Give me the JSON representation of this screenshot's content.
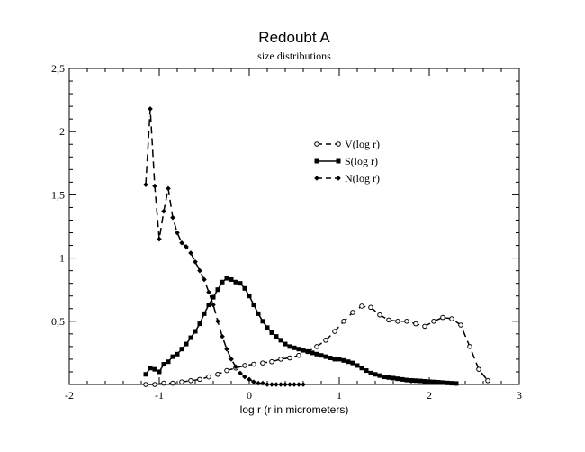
{
  "chart_data": {
    "type": "line",
    "title": "Redoubt A",
    "subtitle": "size distributions",
    "xlabel": "log r (r in micrometers)",
    "ylabel": "",
    "xlim": [
      -2,
      3
    ],
    "ylim": [
      0,
      2.5
    ],
    "x_ticks": [
      {
        "value": -2,
        "label": "-2"
      },
      {
        "value": -1,
        "label": "-1"
      },
      {
        "value": 0,
        "label": "0"
      },
      {
        "value": 1,
        "label": "1"
      },
      {
        "value": 2,
        "label": "2"
      },
      {
        "value": 3,
        "label": "3"
      }
    ],
    "y_ticks": [
      {
        "value": 0.5,
        "label": "0,5"
      },
      {
        "value": 1,
        "label": "1"
      },
      {
        "value": 1.5,
        "label": "1,5"
      },
      {
        "value": 2,
        "label": "2"
      },
      {
        "value": 2.5,
        "label": "2,5"
      }
    ],
    "legend_position": "upper-middle",
    "series": [
      {
        "name": "V(log r)",
        "marker": "open-circle",
        "line": "dashed",
        "x": [
          -1.15,
          -1.05,
          -0.95,
          -0.85,
          -0.75,
          -0.65,
          -0.55,
          -0.45,
          -0.35,
          -0.25,
          -0.15,
          -0.05,
          0.05,
          0.15,
          0.25,
          0.35,
          0.45,
          0.55,
          0.65,
          0.75,
          0.85,
          0.95,
          1.05,
          1.15,
          1.25,
          1.35,
          1.45,
          1.55,
          1.65,
          1.75,
          1.85,
          1.95,
          2.05,
          2.15,
          2.25,
          2.35,
          2.45,
          2.55,
          2.65
        ],
        "y": [
          0.0,
          0.0,
          0.01,
          0.01,
          0.02,
          0.03,
          0.04,
          0.06,
          0.08,
          0.11,
          0.13,
          0.15,
          0.16,
          0.17,
          0.18,
          0.2,
          0.21,
          0.23,
          0.26,
          0.3,
          0.35,
          0.42,
          0.5,
          0.57,
          0.62,
          0.61,
          0.55,
          0.51,
          0.5,
          0.5,
          0.48,
          0.46,
          0.5,
          0.53,
          0.52,
          0.47,
          0.3,
          0.12,
          0.03
        ]
      },
      {
        "name": "S(log r)",
        "marker": "filled-square",
        "line": "solid",
        "x": [
          -1.15,
          -1.1,
          -1.05,
          -1.0,
          -0.95,
          -0.9,
          -0.85,
          -0.8,
          -0.75,
          -0.7,
          -0.65,
          -0.6,
          -0.55,
          -0.5,
          -0.45,
          -0.4,
          -0.35,
          -0.3,
          -0.25,
          -0.2,
          -0.15,
          -0.1,
          -0.05,
          0.0,
          0.05,
          0.1,
          0.15,
          0.2,
          0.25,
          0.3,
          0.35,
          0.4,
          0.45,
          0.5,
          0.55,
          0.6,
          0.65,
          0.7,
          0.75,
          0.8,
          0.85,
          0.9,
          0.95,
          1.0,
          1.05,
          1.1,
          1.15,
          1.2,
          1.25,
          1.3,
          1.35,
          1.4,
          1.45,
          1.5,
          1.55,
          1.6,
          1.65,
          1.7,
          1.75,
          1.8,
          1.85,
          1.9,
          1.95,
          2.0,
          2.05,
          2.1,
          2.15,
          2.2,
          2.25,
          2.3
        ],
        "y": [
          0.08,
          0.13,
          0.12,
          0.1,
          0.16,
          0.18,
          0.22,
          0.24,
          0.28,
          0.32,
          0.37,
          0.42,
          0.48,
          0.56,
          0.63,
          0.69,
          0.75,
          0.81,
          0.84,
          0.83,
          0.81,
          0.8,
          0.76,
          0.7,
          0.63,
          0.56,
          0.5,
          0.45,
          0.41,
          0.38,
          0.35,
          0.32,
          0.3,
          0.29,
          0.28,
          0.27,
          0.26,
          0.25,
          0.24,
          0.23,
          0.22,
          0.21,
          0.2,
          0.2,
          0.19,
          0.18,
          0.17,
          0.15,
          0.13,
          0.11,
          0.09,
          0.08,
          0.07,
          0.06,
          0.055,
          0.05,
          0.045,
          0.04,
          0.035,
          0.032,
          0.03,
          0.028,
          0.025,
          0.022,
          0.02,
          0.018,
          0.015,
          0.012,
          0.01,
          0.008
        ]
      },
      {
        "name": "N(log r)",
        "marker": "filled-diamond",
        "line": "dashed",
        "x": [
          -1.15,
          -1.1,
          -1.05,
          -1.0,
          -0.95,
          -0.9,
          -0.85,
          -0.8,
          -0.75,
          -0.7,
          -0.65,
          -0.6,
          -0.55,
          -0.5,
          -0.45,
          -0.4,
          -0.35,
          -0.3,
          -0.25,
          -0.2,
          -0.15,
          -0.1,
          -0.05,
          0.0,
          0.05,
          0.1,
          0.15,
          0.2,
          0.25,
          0.3,
          0.35,
          0.4,
          0.45,
          0.5,
          0.55,
          0.6
        ],
        "y": [
          1.58,
          2.18,
          1.57,
          1.15,
          1.37,
          1.55,
          1.32,
          1.2,
          1.12,
          1.09,
          1.04,
          0.97,
          0.9,
          0.83,
          0.73,
          0.63,
          0.5,
          0.38,
          0.28,
          0.2,
          0.14,
          0.09,
          0.06,
          0.04,
          0.02,
          0.01,
          0.01,
          0.0,
          0.0,
          0.0,
          0.0,
          0.0,
          0.0,
          0.0,
          0.0,
          0.0
        ]
      }
    ]
  }
}
